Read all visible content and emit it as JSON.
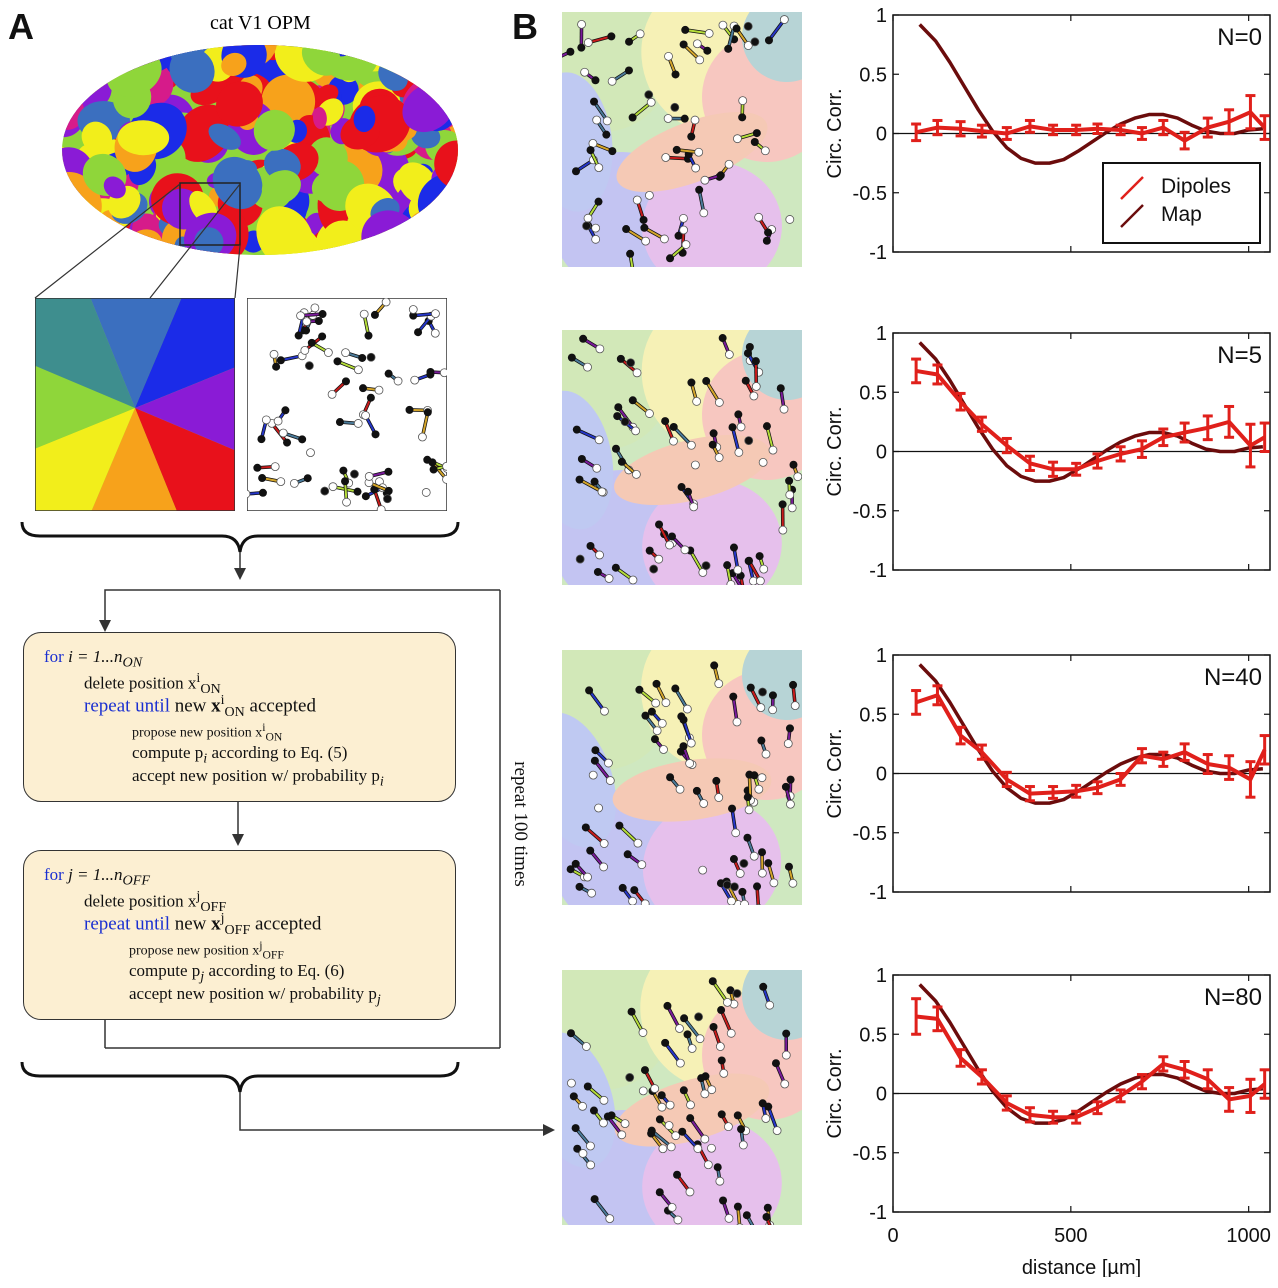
{
  "panel_a": {
    "letter": "A",
    "map_title": "cat V1 OPM",
    "loop_label": "repeat 100 times",
    "on_block": {
      "line1_kw": "for",
      "line1_rest": "i = 1...n",
      "line1_sub": "ON",
      "line2": "delete position x",
      "line2_sup": "i",
      "line2_sub": "ON",
      "line3_kw": "repeat until",
      "line3_rest_a": "new",
      "line3_x": "x",
      "line3_sup": "i",
      "line3_sub": "ON",
      "line3_rest_b": "accepted",
      "line4": "propose new position x",
      "line4_sup": "i",
      "line4_sub": "ON",
      "line5": "compute p",
      "line5_sub": "i",
      "line5_rest": "according to Eq. (5)",
      "line6": "accept new position w/ probability p",
      "line6_sub": "i"
    },
    "off_block": {
      "line1_kw": "for",
      "line1_rest": "j = 1...n",
      "line1_sub": "OFF",
      "line2": "delete position x",
      "line2_sup": "j",
      "line2_sub": "OFF",
      "line3_kw": "repeat until",
      "line3_rest_a": "new",
      "line3_x": "x",
      "line3_sup": "j",
      "line3_sub": "OFF",
      "line3_rest_b": "accepted",
      "line4": "propose new position x",
      "line4_sup": "j",
      "line4_sub": "OFF",
      "line5": "compute p",
      "line5_sub": "j",
      "line5_rest": "according to Eq. (6)",
      "line6": "accept new position w/ probability p",
      "line6_sub": "j"
    }
  },
  "panel_b": {
    "letter": "B"
  },
  "colors": {
    "dipoles": "#e0201b",
    "map": "#6b0c0c",
    "box_fill": "#fcefd2",
    "keyword": "#1a2fd1"
  },
  "chart_data": [
    {
      "type": "line",
      "label": "N=0",
      "ylabel": "Circ. Corr.",
      "xlabel": "",
      "xlim": [
        0,
        1060
      ],
      "ylim": [
        -1,
        1
      ],
      "yticks": [
        "1",
        "0.5",
        "0",
        "-0.5",
        "-1"
      ],
      "xticks": [],
      "legend": {
        "position": "bottom-right",
        "entries": [
          "Dipoles",
          "Map"
        ]
      },
      "series": [
        {
          "name": "Dipoles",
          "x": [
            65,
            125,
            190,
            250,
            320,
            385,
            450,
            515,
            575,
            640,
            700,
            760,
            820,
            885,
            945,
            1005,
            1045
          ],
          "y": [
            0.01,
            0.05,
            0.04,
            0.02,
            0.0,
            0.06,
            0.03,
            0.03,
            0.04,
            0.03,
            0.0,
            0.05,
            -0.06,
            0.05,
            0.1,
            0.18,
            0.05
          ],
          "err": [
            0.07,
            0.06,
            0.06,
            0.05,
            0.05,
            0.05,
            0.04,
            0.04,
            0.04,
            0.04,
            0.05,
            0.06,
            0.07,
            0.08,
            0.1,
            0.14,
            0.1
          ]
        },
        {
          "name": "Map",
          "x": [
            75,
            120,
            160,
            200,
            240,
            280,
            320,
            360,
            400,
            440,
            480,
            520,
            560,
            600,
            640,
            680,
            720,
            760,
            800,
            840,
            880,
            920,
            960,
            1000,
            1040
          ],
          "y": [
            0.92,
            0.78,
            0.6,
            0.4,
            0.2,
            0.02,
            -0.12,
            -0.21,
            -0.25,
            -0.25,
            -0.22,
            -0.15,
            -0.07,
            0.01,
            0.08,
            0.13,
            0.16,
            0.16,
            0.13,
            0.07,
            0.02,
            0.0,
            0.0,
            0.03,
            0.04
          ]
        }
      ]
    },
    {
      "type": "line",
      "label": "N=5",
      "ylabel": "Circ. Corr.",
      "xlabel": "",
      "xlim": [
        0,
        1060
      ],
      "ylim": [
        -1,
        1
      ],
      "yticks": [
        "1",
        "0.5",
        "0",
        "-0.5",
        "-1"
      ],
      "xticks": [],
      "series": [
        {
          "name": "Dipoles",
          "x": [
            65,
            125,
            190,
            250,
            320,
            385,
            450,
            515,
            575,
            640,
            700,
            760,
            820,
            885,
            945,
            1005,
            1045
          ],
          "y": [
            0.68,
            0.65,
            0.42,
            0.23,
            0.05,
            -0.1,
            -0.15,
            -0.15,
            -0.08,
            -0.02,
            0.02,
            0.12,
            0.16,
            0.2,
            0.25,
            0.05,
            0.12
          ],
          "err": [
            0.1,
            0.08,
            0.07,
            0.06,
            0.06,
            0.06,
            0.06,
            0.05,
            0.06,
            0.06,
            0.07,
            0.07,
            0.08,
            0.1,
            0.13,
            0.18,
            0.12
          ]
        },
        {
          "name": "Map",
          "x": [
            75,
            120,
            160,
            200,
            240,
            280,
            320,
            360,
            400,
            440,
            480,
            520,
            560,
            600,
            640,
            680,
            720,
            760,
            800,
            840,
            880,
            920,
            960,
            1000,
            1040
          ],
          "y": [
            0.92,
            0.78,
            0.6,
            0.4,
            0.2,
            0.02,
            -0.12,
            -0.21,
            -0.25,
            -0.25,
            -0.22,
            -0.15,
            -0.07,
            0.01,
            0.08,
            0.13,
            0.16,
            0.16,
            0.13,
            0.07,
            0.02,
            0.0,
            0.0,
            0.03,
            0.04
          ]
        }
      ]
    },
    {
      "type": "line",
      "label": "N=40",
      "ylabel": "Circ. Corr.",
      "xlabel": "",
      "xlim": [
        0,
        1060
      ],
      "ylim": [
        -1,
        1
      ],
      "yticks": [
        "1",
        "0.5",
        "0",
        "-0.5",
        "-1"
      ],
      "xticks": [],
      "series": [
        {
          "name": "Dipoles",
          "x": [
            65,
            125,
            190,
            250,
            320,
            385,
            450,
            515,
            575,
            640,
            700,
            760,
            820,
            885,
            945,
            1005,
            1045
          ],
          "y": [
            0.6,
            0.66,
            0.32,
            0.18,
            -0.05,
            -0.17,
            -0.16,
            -0.15,
            -0.12,
            -0.05,
            0.15,
            0.12,
            0.18,
            0.08,
            0.05,
            -0.05,
            0.2
          ],
          "err": [
            0.1,
            0.08,
            0.07,
            0.06,
            0.06,
            0.06,
            0.05,
            0.05,
            0.05,
            0.05,
            0.06,
            0.06,
            0.07,
            0.08,
            0.1,
            0.15,
            0.12
          ]
        },
        {
          "name": "Map",
          "x": [
            75,
            120,
            160,
            200,
            240,
            280,
            320,
            360,
            400,
            440,
            480,
            520,
            560,
            600,
            640,
            680,
            720,
            760,
            800,
            840,
            880,
            920,
            960,
            1000,
            1040
          ],
          "y": [
            0.92,
            0.78,
            0.6,
            0.4,
            0.2,
            0.02,
            -0.12,
            -0.21,
            -0.25,
            -0.25,
            -0.22,
            -0.15,
            -0.07,
            0.01,
            0.08,
            0.13,
            0.16,
            0.16,
            0.13,
            0.07,
            0.02,
            0.0,
            0.0,
            0.03,
            0.04
          ]
        }
      ]
    },
    {
      "type": "line",
      "label": "N=80",
      "ylabel": "Circ. Corr.",
      "xlabel": "distance [µm]",
      "xlim": [
        0,
        1060
      ],
      "ylim": [
        -1,
        1
      ],
      "yticks": [
        "1",
        "0.5",
        "0",
        "-0.5",
        "-1"
      ],
      "xticks": [
        "0",
        "500",
        "1000"
      ],
      "series": [
        {
          "name": "Dipoles",
          "x": [
            65,
            125,
            190,
            250,
            320,
            385,
            450,
            515,
            575,
            640,
            700,
            760,
            820,
            885,
            945,
            1005,
            1045
          ],
          "y": [
            0.65,
            0.63,
            0.3,
            0.14,
            -0.08,
            -0.18,
            -0.2,
            -0.2,
            -0.12,
            -0.02,
            0.1,
            0.25,
            0.2,
            0.12,
            -0.05,
            -0.02,
            0.08
          ],
          "err": [
            0.15,
            0.1,
            0.07,
            0.06,
            0.06,
            0.06,
            0.05,
            0.05,
            0.05,
            0.05,
            0.06,
            0.06,
            0.07,
            0.08,
            0.1,
            0.14,
            0.12
          ]
        },
        {
          "name": "Map",
          "x": [
            75,
            120,
            160,
            200,
            240,
            280,
            320,
            360,
            400,
            440,
            480,
            520,
            560,
            600,
            640,
            680,
            720,
            760,
            800,
            840,
            880,
            920,
            960,
            1000,
            1040
          ],
          "y": [
            0.92,
            0.78,
            0.6,
            0.4,
            0.2,
            0.02,
            -0.12,
            -0.21,
            -0.25,
            -0.25,
            -0.22,
            -0.15,
            -0.07,
            0.01,
            0.08,
            0.13,
            0.16,
            0.16,
            0.13,
            0.07,
            0.02,
            0.0,
            0.0,
            0.03,
            0.04
          ]
        }
      ]
    }
  ]
}
